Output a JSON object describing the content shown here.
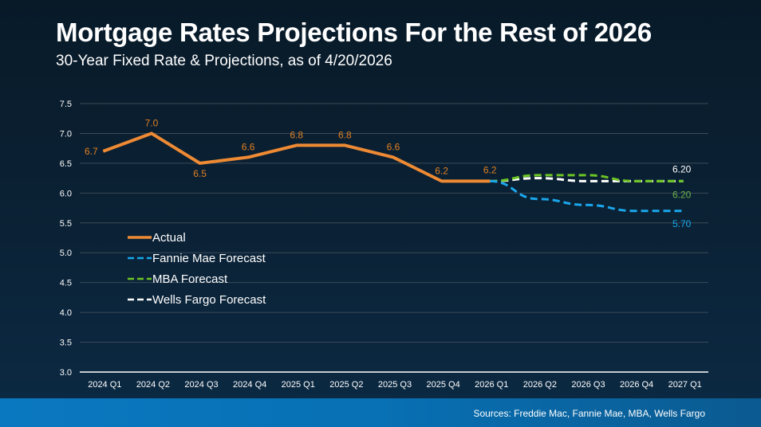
{
  "chart_data": {
    "type": "line",
    "title": "Mortgage Rates Projections For the Rest of 2026",
    "subtitle": "30-Year Fixed Rate & Projections, as of 4/20/2026",
    "xlabel": "",
    "ylabel": "",
    "ylim": [
      3.0,
      7.5
    ],
    "yticks": [
      "7.5",
      "7.0",
      "6.5",
      "6.0",
      "5.5",
      "5.0",
      "4.5",
      "4.0",
      "3.5",
      "3.0"
    ],
    "ytick_values": [
      7.5,
      7.0,
      6.5,
      6.0,
      5.5,
      5.0,
      4.5,
      4.0,
      3.5,
      3.0
    ],
    "grid": true,
    "legend_position": "center-left",
    "categories": [
      "2024 Q1",
      "2024 Q2",
      "2024 Q3",
      "2024 Q4",
      "2025 Q1",
      "2025 Q2",
      "2025 Q3",
      "2025 Q4",
      "2026 Q1",
      "2026 Q2",
      "2026 Q3",
      "2026 Q4",
      "2027 Q1"
    ],
    "series": [
      {
        "name": "Actual",
        "style": "solid",
        "color": "#ee8a34",
        "values": [
          6.7,
          7.0,
          6.5,
          6.6,
          6.8,
          6.8,
          6.6,
          6.2,
          6.2,
          null,
          null,
          null,
          null
        ],
        "labels": [
          "6.7",
          "7.0",
          "6.5",
          "6.6",
          "6.8",
          "6.8",
          "6.6",
          "6.2",
          "6.2",
          null,
          null,
          null,
          null
        ],
        "label_color": "#e07f22"
      },
      {
        "name": "Fannie Mae Forecast",
        "style": "dashed",
        "color": "#1aa7ec",
        "values": [
          null,
          null,
          null,
          null,
          null,
          null,
          null,
          null,
          6.2,
          5.9,
          5.8,
          5.7,
          5.7
        ],
        "end_label": "5.70",
        "label_color": "#1aa7ec"
      },
      {
        "name": "MBA Forecast",
        "style": "dashed",
        "color": "#6cc524",
        "values": [
          null,
          null,
          null,
          null,
          null,
          null,
          null,
          null,
          6.2,
          6.3,
          6.3,
          6.2,
          6.2
        ],
        "end_label": "6.20",
        "label_color": "#6cb24a"
      },
      {
        "name": "Wells Fargo Forecast",
        "style": "dashed",
        "color": "#ffffff",
        "values": [
          null,
          null,
          null,
          null,
          null,
          null,
          null,
          null,
          6.2,
          6.25,
          6.2,
          6.2,
          6.2
        ],
        "end_label": "6.20",
        "label_color": "#ffffff"
      }
    ]
  },
  "footer": {
    "sources": "Sources: Freddie Mac, Fannie Mae, MBA, Wells Fargo"
  },
  "colors": {
    "background": "#0a1f30",
    "footer": "#0a78c0",
    "grid": "#3b4a57",
    "axis": "#ffffff"
  }
}
